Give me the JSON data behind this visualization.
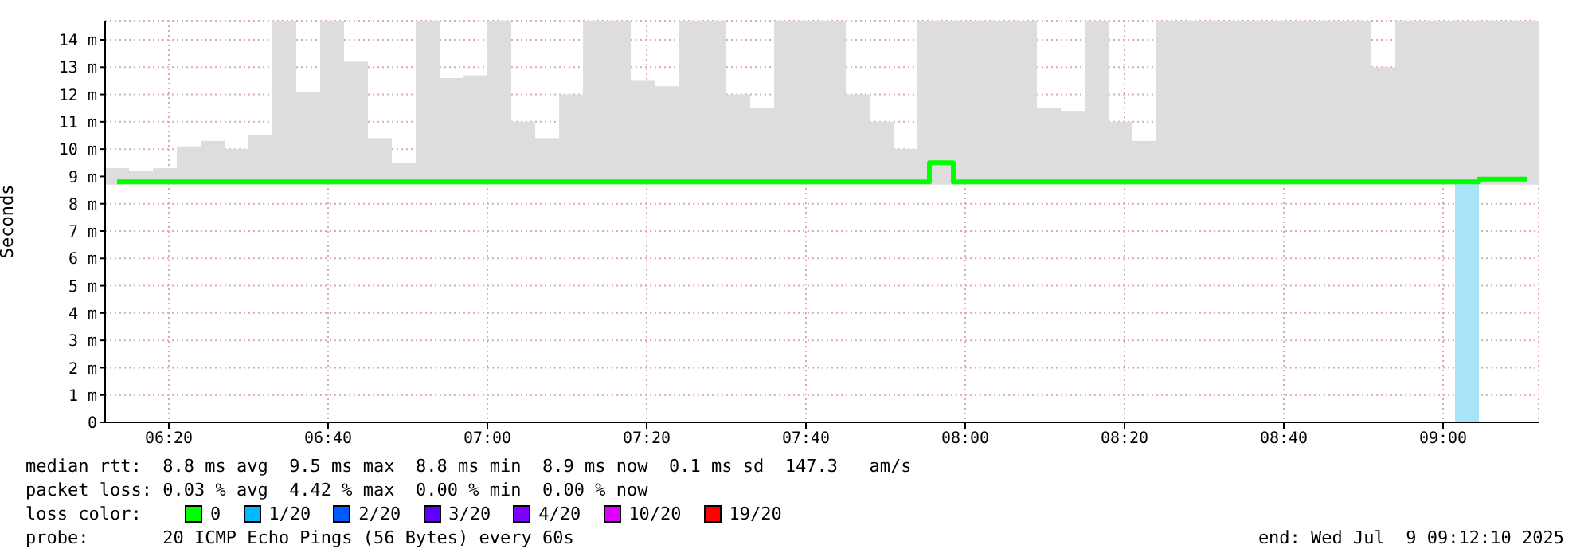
{
  "chart_data": {
    "type": "bar",
    "ylabel": "Seconds",
    "xlim": [
      6.2,
      9.2
    ],
    "ylim": [
      0,
      14.7
    ],
    "xticks": [
      {
        "value": 6.333333,
        "label": "06:20"
      },
      {
        "value": 6.666667,
        "label": "06:40"
      },
      {
        "value": 7,
        "label": "07:00"
      },
      {
        "value": 7.333333,
        "label": "07:20"
      },
      {
        "value": 7.666667,
        "label": "07:40"
      },
      {
        "value": 8,
        "label": "08:00"
      },
      {
        "value": 8.333333,
        "label": "08:20"
      },
      {
        "value": 8.666667,
        "label": "08:40"
      },
      {
        "value": 9,
        "label": "09:00"
      }
    ],
    "yticks": [
      0,
      {
        "value": 1,
        "label": "1 m"
      },
      {
        "value": 2,
        "label": "2 m"
      },
      {
        "value": 3,
        "label": "3 m"
      },
      {
        "value": 4,
        "label": "4 m"
      },
      {
        "value": 5,
        "label": "5 m"
      },
      {
        "value": 6,
        "label": "6 m"
      },
      {
        "value": 7,
        "label": "7 m"
      },
      {
        "value": 8,
        "label": "8 m"
      },
      {
        "value": 9,
        "label": "9 m"
      },
      {
        "value": 10,
        "label": "10 m"
      },
      {
        "value": 11,
        "label": "11 m"
      },
      {
        "value": 12,
        "label": "12 m"
      },
      {
        "value": 13,
        "label": "13 m"
      },
      {
        "value": 14,
        "label": "14 m"
      }
    ],
    "grid": true,
    "legend": "bottom",
    "legend_title": "loss color:",
    "annotations": [
      "median rtt:  8.8 ms avg  9.5 ms max  8.8 ms min  8.9 ms now  0.1 ms sd  147.3   am/s",
      "packet loss: 0.03 % avg  4.42 % max  0.00 % min  0.00 % now",
      "probe:       20 ICMP Echo Pings (56 Bytes) every 60s",
      "end: Wed Jul  9 09:12:10 2025"
    ],
    "series": [
      {
        "color": "#dddddd",
        "x": [
          6.225,
          6.275,
          6.325,
          6.375,
          6.425,
          6.475,
          6.525,
          6.575,
          6.625,
          6.675,
          6.725,
          6.775,
          6.825,
          6.875,
          6.925,
          6.975,
          7.025,
          7.075,
          7.125,
          7.175,
          7.225,
          7.275,
          7.325,
          7.375,
          7.425,
          7.475,
          7.525,
          7.575,
          7.625,
          7.675,
          7.725,
          7.775,
          7.825,
          7.875,
          7.925,
          7.975,
          8.025,
          8.075,
          8.125,
          8.175,
          8.225,
          8.275,
          8.325,
          8.375,
          8.425,
          8.475,
          8.525,
          8.575,
          8.625,
          8.675,
          8.725,
          8.775,
          8.825,
          8.875,
          8.925,
          8.975,
          9.025,
          9.075,
          9.125,
          9.175
        ],
        "base": [
          8.7,
          8.7,
          8.7,
          8.7,
          8.7,
          8.7,
          8.7,
          8.7,
          8.7,
          8.7,
          8.7,
          8.7,
          8.7,
          8.7,
          8.7,
          8.7,
          8.7,
          8.7,
          8.7,
          8.7,
          8.7,
          8.7,
          8.7,
          8.7,
          8.7,
          8.7,
          8.7,
          8.7,
          8.7,
          8.7,
          8.7,
          8.7,
          8.7,
          8.7,
          8.7,
          8.7,
          8.7,
          8.7,
          8.7,
          8.7,
          8.7,
          8.7,
          8.7,
          8.7,
          8.7,
          8.7,
          8.7,
          8.7,
          8.7,
          8.7,
          8.7,
          8.7,
          8.7,
          8.7,
          8.7,
          8.7,
          8.7,
          8.7,
          8.7,
          8.7
        ],
        "values": [
          0.6,
          0.5,
          0.6,
          1.4,
          1.6,
          1.3,
          1.8,
          6,
          3.4,
          6,
          4.5,
          1.7,
          0.8,
          6,
          3.9,
          4,
          6,
          2.3,
          1.7,
          3.3,
          6,
          6,
          3.8,
          3.6,
          6,
          6,
          3.3,
          2.8,
          6,
          6,
          6,
          3.3,
          2.3,
          1.3,
          6,
          6,
          6,
          6,
          6,
          2.8,
          2.7,
          6,
          2.3,
          1.6,
          6,
          6,
          6,
          6,
          6,
          6,
          6,
          6,
          6,
          4.3,
          6,
          6,
          6,
          6,
          6,
          6
        ]
      },
      {
        "color": "#a8e4f8",
        "x": [
          9.05
        ],
        "values": [
          8.8
        ]
      },
      {
        "type": "step",
        "name": "0",
        "color": "#00ff00",
        "x": [
          6.225,
          6.275,
          6.325,
          6.375,
          6.425,
          6.475,
          6.525,
          6.575,
          6.625,
          6.675,
          6.725,
          6.775,
          6.825,
          6.875,
          6.925,
          6.975,
          7.025,
          7.075,
          7.125,
          7.175,
          7.225,
          7.275,
          7.325,
          7.375,
          7.425,
          7.475,
          7.525,
          7.575,
          7.625,
          7.675,
          7.725,
          7.775,
          7.825,
          7.875,
          7.925,
          7.975,
          8.025,
          8.075,
          8.125,
          8.175,
          8.225,
          8.275,
          8.325,
          8.375,
          8.425,
          8.475,
          8.525,
          8.575,
          8.625,
          8.675,
          8.725,
          8.775,
          8.825,
          8.875,
          8.925,
          8.975,
          9.025,
          9.075,
          9.125,
          9.175
        ],
        "values": [
          8.8,
          8.8,
          8.8,
          8.8,
          8.8,
          8.8,
          8.8,
          8.8,
          8.8,
          8.8,
          8.8,
          8.8,
          8.8,
          8.8,
          8.8,
          8.8,
          8.8,
          8.8,
          8.8,
          8.8,
          8.8,
          8.8,
          8.8,
          8.8,
          8.8,
          8.8,
          8.8,
          8.8,
          8.8,
          8.8,
          8.8,
          8.8,
          8.8,
          8.8,
          9.5,
          8.8,
          8.8,
          8.8,
          8.8,
          8.8,
          8.8,
          8.8,
          8.8,
          8.8,
          8.8,
          8.8,
          8.8,
          8.8,
          8.8,
          8.8,
          8.8,
          8.8,
          8.8,
          8.8,
          8.8,
          8.8,
          8.8,
          8.9,
          8.9,
          8.9
        ]
      },
      {
        "type": "line",
        "name": "1/20",
        "color": "#00b8ff"
      },
      {
        "type": "line",
        "name": "2/20",
        "color": "#0059ff"
      },
      {
        "type": "line",
        "name": "3/20",
        "color": "#5e00ff"
      },
      {
        "type": "line",
        "name": "4/20",
        "color": "#7e00ff"
      },
      {
        "type": "line",
        "name": "10/20",
        "color": "#dd00ff"
      },
      {
        "type": "line",
        "name": "19/20",
        "color": "#ff0000"
      }
    ]
  }
}
